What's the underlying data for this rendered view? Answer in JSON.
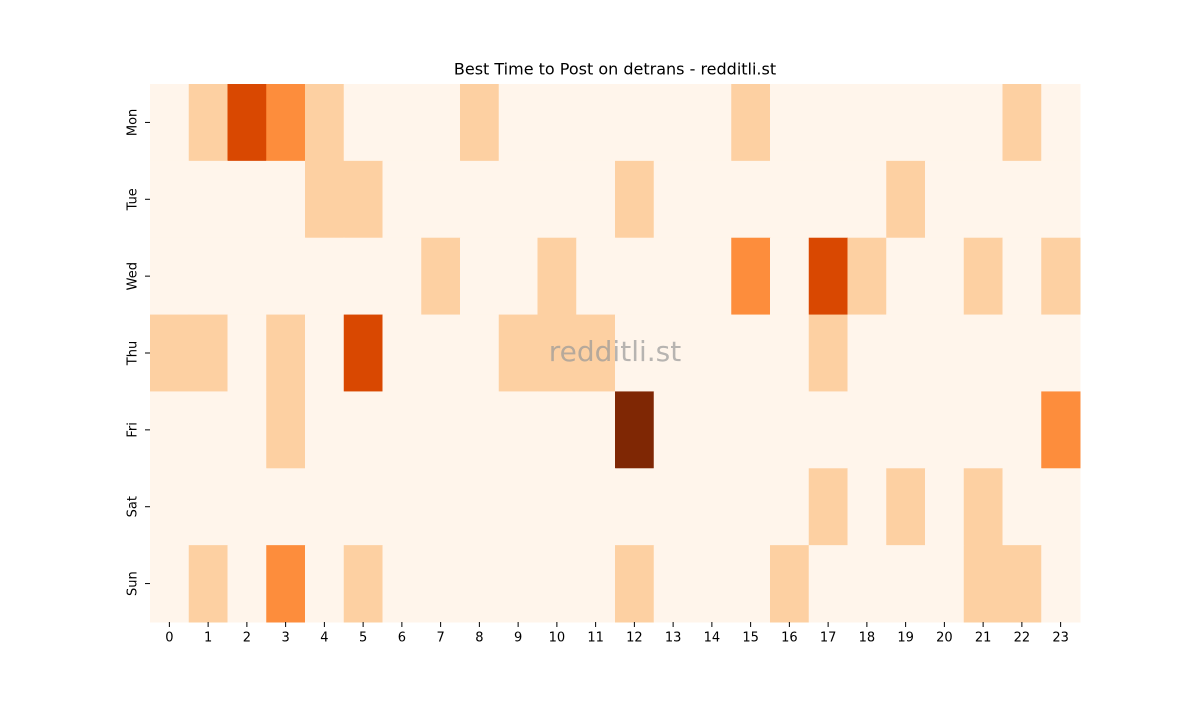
{
  "chart_data": {
    "type": "heatmap",
    "title": "Best Time to Post on detrans - redditli.st",
    "watermark": "redditli.st",
    "x": [
      0,
      1,
      2,
      3,
      4,
      5,
      6,
      7,
      8,
      9,
      10,
      11,
      12,
      13,
      14,
      15,
      16,
      17,
      18,
      19,
      20,
      21,
      22,
      23
    ],
    "y": [
      "Mon",
      "Tue",
      "Wed",
      "Thu",
      "Fri",
      "Sat",
      "Sun"
    ],
    "values": [
      [
        0,
        1,
        3,
        2,
        1,
        0,
        0,
        0,
        1,
        0,
        0,
        0,
        0,
        0,
        0,
        1,
        0,
        0,
        0,
        0,
        0,
        0,
        1,
        0
      ],
      [
        0,
        0,
        0,
        0,
        1,
        1,
        0,
        0,
        0,
        0,
        0,
        0,
        1,
        0,
        0,
        0,
        0,
        0,
        0,
        1,
        0,
        0,
        0,
        0
      ],
      [
        0,
        0,
        0,
        0,
        0,
        0,
        0,
        1,
        0,
        0,
        1,
        0,
        0,
        0,
        0,
        2,
        0,
        3,
        1,
        0,
        0,
        1,
        0,
        1
      ],
      [
        1,
        1,
        0,
        1,
        0,
        3,
        0,
        0,
        0,
        1,
        1,
        1,
        0,
        0,
        0,
        0,
        0,
        1,
        0,
        0,
        0,
        0,
        0,
        0
      ],
      [
        0,
        0,
        0,
        1,
        0,
        0,
        0,
        0,
        0,
        0,
        0,
        0,
        4,
        0,
        0,
        0,
        0,
        0,
        0,
        0,
        0,
        0,
        0,
        2
      ],
      [
        0,
        0,
        0,
        0,
        0,
        0,
        0,
        0,
        0,
        0,
        0,
        0,
        0,
        0,
        0,
        0,
        0,
        1,
        0,
        1,
        0,
        1,
        0,
        0
      ],
      [
        0,
        1,
        0,
        2,
        0,
        1,
        0,
        0,
        0,
        0,
        0,
        0,
        1,
        0,
        0,
        0,
        1,
        0,
        0,
        0,
        0,
        1,
        1,
        0
      ]
    ],
    "zlim": [
      0,
      4
    ],
    "colormap": [
      "#fff5eb",
      "#fdd0a2",
      "#fd8d3c",
      "#d94801",
      "#7f2704"
    ]
  }
}
